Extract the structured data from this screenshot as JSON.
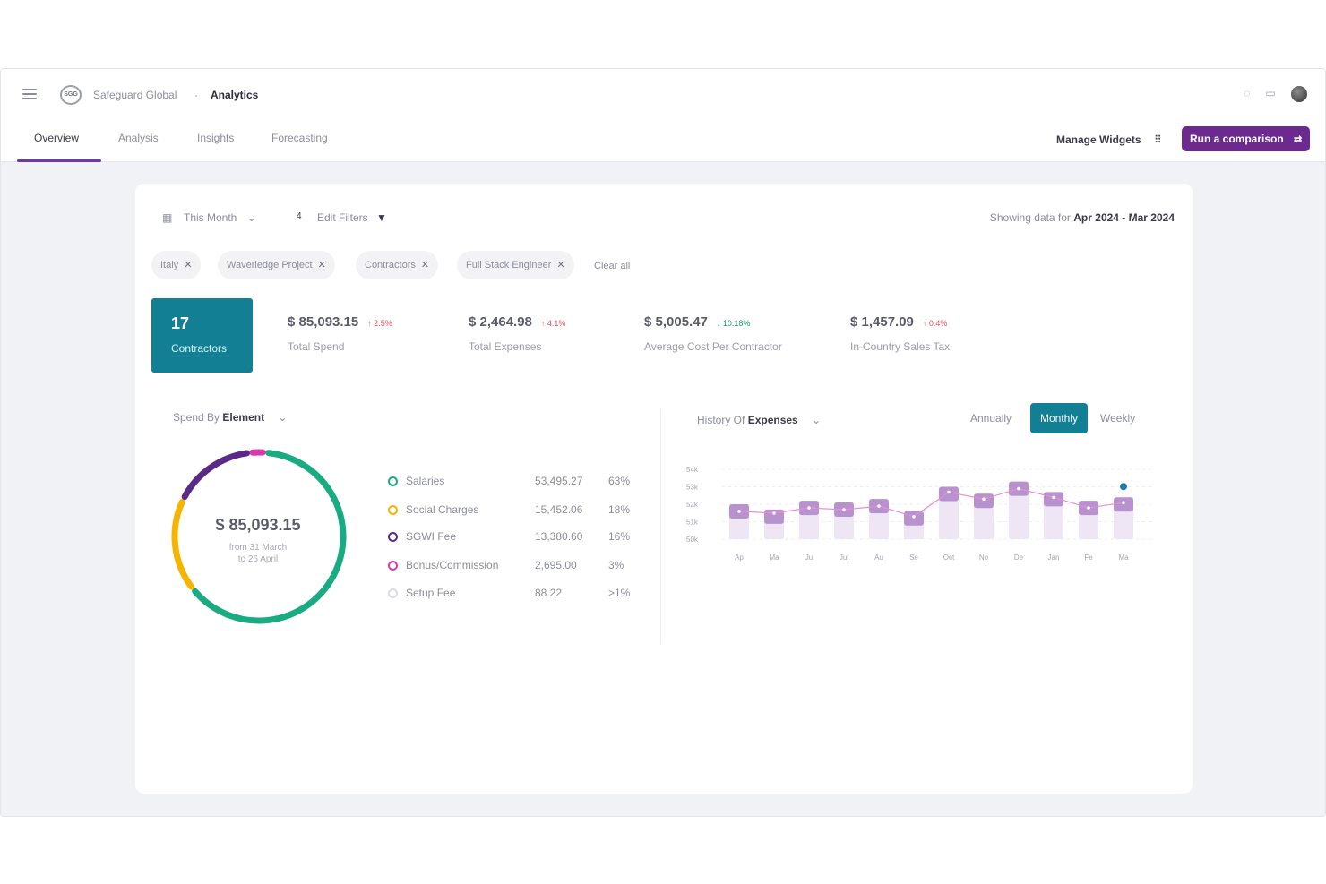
{
  "topbar": {
    "company": "Safeguard Global",
    "separator": "·",
    "page": "Analytics",
    "logo_text": "SGG",
    "icons": [
      "bell-icon",
      "calendar-icon",
      "avatar"
    ]
  },
  "tabs": [
    {
      "label": "Overview",
      "active": true
    },
    {
      "label": "Analysis",
      "active": false
    },
    {
      "label": "Insights",
      "active": false
    },
    {
      "label": "Forecasting",
      "active": false
    }
  ],
  "actions": {
    "manage_widgets": "Manage Widgets",
    "run_comparison": "Run a comparison"
  },
  "filters": {
    "period": "This Month",
    "filter_count": "4",
    "edit_filters": "Edit Filters",
    "range_prefix": "Showing data for",
    "range_value": "Apr 2024 - Mar 2024",
    "chips": [
      "Italy",
      "Waverledge Project",
      "Contractors",
      "Full Stack Engineer"
    ],
    "clear_all": "Clear all"
  },
  "kpis": {
    "main": {
      "value": "17",
      "label": "Contractors"
    },
    "items": [
      {
        "value": "$ 85,093.15",
        "delta": "↑ 2.5%",
        "direction": "up",
        "label": "Total Spend"
      },
      {
        "value": "$ 2,464.98",
        "delta": "↑ 4.1%",
        "direction": "up",
        "label": "Total Expenses"
      },
      {
        "value": "$ 5,005.47",
        "delta": "↓ 10.18%",
        "direction": "down",
        "label": "Average Cost Per Contractor"
      },
      {
        "value": "$ 1,457.09",
        "delta": "↑ 0.4%",
        "direction": "up",
        "label": "In-Country Sales Tax"
      }
    ]
  },
  "spend": {
    "selector_prefix": "Spend By",
    "selector_value": "Element",
    "total": "$ 85,093.15",
    "sub1": "from 31 March",
    "sub2": "to 26 April",
    "legend": [
      {
        "name": "Salaries",
        "amount": "53,495.27",
        "pct": "63%",
        "color": "#1bab82",
        "fraction": 0.63
      },
      {
        "name": "Social Charges",
        "amount": "15,452.06",
        "pct": "18%",
        "color": "#f4b400",
        "fraction": 0.18
      },
      {
        "name": "SGWI Fee",
        "amount": "13,380.60",
        "pct": "16%",
        "color": "#5b2a86",
        "fraction": 0.16
      },
      {
        "name": "Bonus/Commission",
        "amount": "2,695.00",
        "pct": "3%",
        "color": "#d93aaa",
        "fraction": 0.03
      },
      {
        "name": "Setup Fee",
        "amount": "88.22",
        "pct": ">1%",
        "color": "#dcdde3",
        "fraction": 0.0
      }
    ]
  },
  "history": {
    "selector_prefix": "History Of",
    "selector_value": "Expenses",
    "periods": [
      "Annually",
      "Monthly",
      "Weekly"
    ],
    "active_period": "Monthly"
  },
  "chart_data": {
    "type": "bar",
    "categories": [
      "Ap",
      "Ma",
      "Ju",
      "Jul",
      "Au",
      "Se",
      "Oct",
      "No",
      "De",
      "Jan",
      "Fe",
      "Ma"
    ],
    "y_ticks": [
      "54k",
      "53k",
      "52k",
      "51k",
      "50k"
    ],
    "ylim": [
      50,
      54
    ],
    "values": [
      52.0,
      51.7,
      52.2,
      52.1,
      52.3,
      51.6,
      53.0,
      52.6,
      53.3,
      52.7,
      52.2,
      52.4
    ],
    "line": [
      51.9,
      51.8,
      52.1,
      52.0,
      52.2,
      51.6,
      53.0,
      52.6,
      53.2,
      52.7,
      52.1,
      52.4
    ],
    "bar_color": "#b892cf",
    "line_color": "#e58fd4",
    "marker_index": 11,
    "marker_color": "#1d79a8"
  }
}
